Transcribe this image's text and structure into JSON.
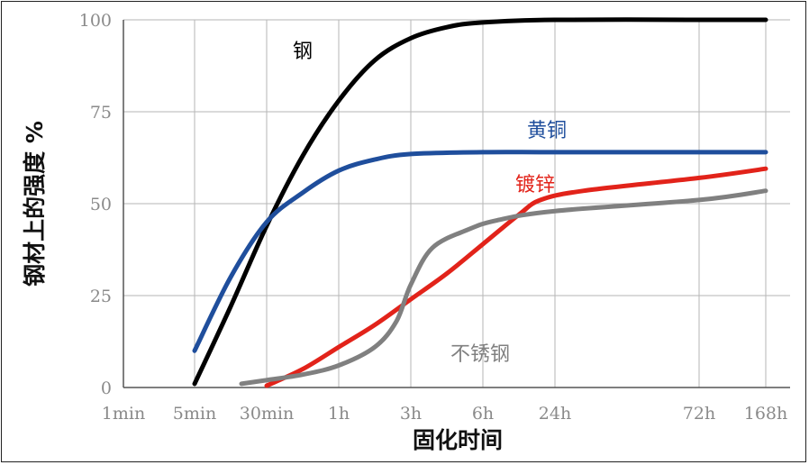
{
  "chart_data": {
    "type": "line",
    "xlabel": "固化时间",
    "ylabel": "钢材上的强度 %",
    "x_categories": [
      "1min",
      "5min",
      "30min",
      "1h",
      "3h",
      "6h",
      "24h",
      "72h",
      "168h"
    ],
    "y_ticks": [
      0,
      25,
      50,
      75,
      100
    ],
    "ylim": [
      0,
      100
    ],
    "grid": true,
    "series": [
      {
        "name": "钢",
        "color": "#000000",
        "points": [
          [
            1,
            1
          ],
          [
            1.5,
            22
          ],
          [
            2,
            44
          ],
          [
            2.5,
            63
          ],
          [
            3,
            78
          ],
          [
            3.5,
            89
          ],
          [
            4,
            95
          ],
          [
            4.5,
            98
          ],
          [
            5,
            99.3
          ],
          [
            6,
            100
          ],
          [
            7,
            100
          ],
          [
            8,
            100
          ]
        ]
      },
      {
        "name": "黄铜",
        "color": "#1f4e9c",
        "points": [
          [
            1,
            10
          ],
          [
            1.5,
            30
          ],
          [
            2,
            45
          ],
          [
            2.5,
            53
          ],
          [
            3,
            59
          ],
          [
            3.5,
            62
          ],
          [
            4,
            63.5
          ],
          [
            5,
            64
          ],
          [
            6,
            64
          ],
          [
            7,
            64
          ],
          [
            8,
            64
          ]
        ]
      },
      {
        "name": "镀锌",
        "color": "#e2231a",
        "points": [
          [
            2,
            0.5
          ],
          [
            2.5,
            5
          ],
          [
            3,
            11
          ],
          [
            3.5,
            17
          ],
          [
            4,
            24
          ],
          [
            4.5,
            31
          ],
          [
            5,
            39
          ],
          [
            5.5,
            47
          ],
          [
            5.8,
            51
          ],
          [
            6.2,
            53.5
          ],
          [
            7,
            57
          ],
          [
            8,
            59.5
          ]
        ]
      },
      {
        "name": "不锈钢",
        "color": "#808080",
        "points": [
          [
            1.65,
            1
          ],
          [
            2,
            2
          ],
          [
            2.5,
            3.5
          ],
          [
            3,
            6
          ],
          [
            3.5,
            11
          ],
          [
            3.8,
            18
          ],
          [
            4,
            28
          ],
          [
            4.3,
            38
          ],
          [
            4.8,
            43
          ],
          [
            5.2,
            45.5
          ],
          [
            6,
            48
          ],
          [
            7,
            51
          ],
          [
            8,
            53.5
          ]
        ]
      }
    ]
  }
}
